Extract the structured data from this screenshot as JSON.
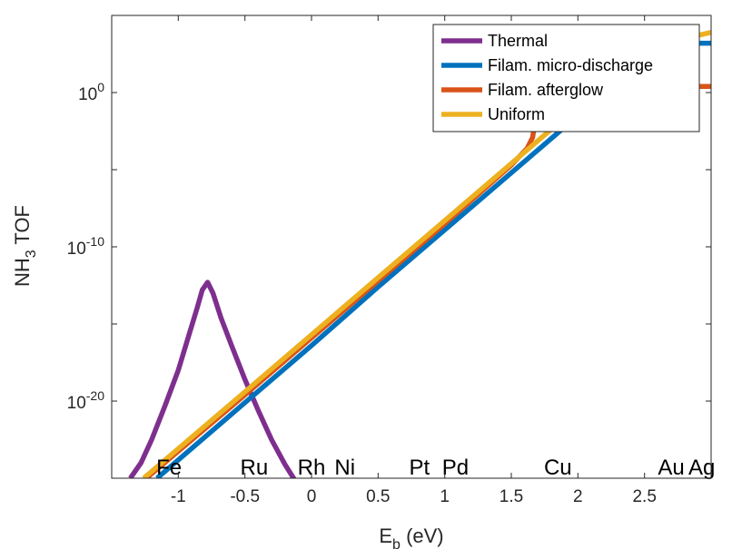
{
  "chart_data": {
    "type": "line",
    "title": "",
    "xlabel": "E_b (eV)",
    "xlabel_main": "E",
    "xlabel_sub": "b",
    "xlabel_unit": " (eV)",
    "ylabel": "NH_3 TOF",
    "ylabel_pre": "NH",
    "ylabel_sub": "3",
    "ylabel_post": " TOF",
    "xlim": [
      -1.5,
      3.0
    ],
    "ylim_log10": [
      -25,
      5
    ],
    "yscale": "log",
    "grid": false,
    "legend_position": "top-right",
    "x_ticks": [
      -1,
      -0.5,
      0,
      0.5,
      1,
      1.5,
      2,
      2.5
    ],
    "x_tick_labels": [
      "-1",
      "-0.5",
      "0",
      "0.5",
      "1",
      "1.5",
      "2",
      "2.5"
    ],
    "y_ticks_log10": [
      -20,
      -10,
      0
    ],
    "y_tick_bases": [
      "10",
      "10",
      "10"
    ],
    "y_tick_exps": [
      "-20",
      "-10",
      "0"
    ],
    "element_labels": [
      {
        "text": "Fe",
        "x": -1.07
      },
      {
        "text": "Ru",
        "x": -0.43
      },
      {
        "text": "Rh",
        "x": 0.0
      },
      {
        "text": "Ni",
        "x": 0.25
      },
      {
        "text": "Pt",
        "x": 0.81
      },
      {
        "text": "Pd",
        "x": 1.08
      },
      {
        "text": "Cu",
        "x": 1.85
      },
      {
        "text": "Au",
        "x": 2.7
      },
      {
        "text": "Ag",
        "x": 2.93
      }
    ],
    "series": [
      {
        "name": "Thermal",
        "color": "#7E2F8E",
        "x": [
          -1.36,
          -1.28,
          -1.2,
          -1.1,
          -1.0,
          -0.92,
          -0.86,
          -0.82,
          -0.78,
          -0.74,
          -0.68,
          -0.6,
          -0.5,
          -0.4,
          -0.3,
          -0.2,
          -0.12
        ],
        "log10_y": [
          -25,
          -24,
          -22.5,
          -20.3,
          -18,
          -15.7,
          -14,
          -12.8,
          -12.3,
          -13,
          -14.6,
          -16.4,
          -18.6,
          -20.6,
          -22.5,
          -24.1,
          -25.2
        ]
      },
      {
        "name": "Filam. micro-discharge",
        "color": "#0072BD",
        "x": [
          -1.16,
          -0.5,
          0,
          0.5,
          1.0,
          1.5,
          2.0,
          2.4,
          2.5,
          2.55,
          2.6,
          2.7,
          2.8,
          3.0
        ],
        "log10_y": [
          -25,
          -20.1,
          -16.4,
          -12.6,
          -8.9,
          -5.2,
          -1.5,
          1.4,
          2.2,
          2.9,
          3.1,
          3.2,
          3.2,
          3.2
        ]
      },
      {
        "name": "Filam. afterglow",
        "color": "#D95319",
        "x": [
          -1.24,
          -0.5,
          0,
          0.5,
          1.0,
          1.5,
          1.62,
          1.66,
          1.69,
          1.72,
          1.76,
          1.85,
          2.0,
          2.5,
          3.0
        ],
        "log10_y": [
          -25,
          -19.6,
          -15.9,
          -12.2,
          -8.5,
          -4.7,
          -3.6,
          -2.9,
          -1.2,
          -0.1,
          0.3,
          0.4,
          0.4,
          0.4,
          0.4
        ]
      },
      {
        "name": "Uniform",
        "color": "#EDB120",
        "x": [
          -1.26,
          -0.5,
          0,
          0.5,
          1.0,
          1.5,
          2.0,
          2.3,
          2.5,
          2.7,
          2.9,
          3.0
        ],
        "log10_y": [
          -25,
          -19.4,
          -15.7,
          -12.0,
          -8.3,
          -4.6,
          -0.9,
          1.3,
          2.4,
          3.2,
          3.7,
          3.9
        ]
      }
    ]
  }
}
